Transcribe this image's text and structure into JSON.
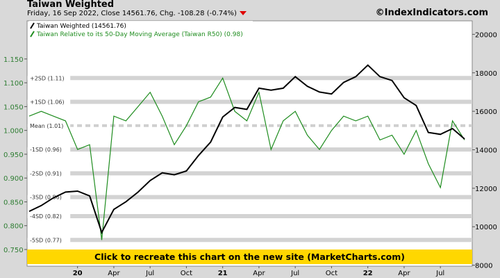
{
  "header": {
    "title": "Taiwan Weighted",
    "subtitle": "Friday, 16 Sep 2022, Close 14561.76, Chg. -108.28 (-0.74%)",
    "brand": "©IndexIndicators.com",
    "down_color": "#e00000"
  },
  "banner": {
    "text": "Click to recreate this chart on the new site (MarketCharts.com)",
    "color": "#ffd700"
  },
  "chart_data": {
    "type": "line",
    "legend": [
      "Taiwan Weighted (14561.76)",
      "Taiwan Relative to its 50-Day Moving Average (Taiwan R50) (0.98)"
    ],
    "legend_placement": "top-left",
    "left_axis": {
      "ticks": [
        "1.150",
        "1.100",
        "1.050",
        "1.000",
        "0.950",
        "0.900",
        "0.850",
        "0.800",
        "0.750"
      ],
      "range": [
        0.715,
        1.23
      ]
    },
    "right_axis": {
      "ticks": [
        "20000",
        "18000",
        "16000",
        "14000",
        "12000",
        "10000",
        "8000"
      ],
      "range": [
        7950,
        20700
      ]
    },
    "x_labels": [
      "20",
      "Apr",
      "Jul",
      "Oct",
      "21",
      "Apr",
      "Jul",
      "Oct",
      "22",
      "Apr",
      "Jul"
    ],
    "x_labels_bold": [
      "20",
      "21",
      "22"
    ],
    "bands": [
      {
        "label": "+2SD (1.11)",
        "value": 1.11
      },
      {
        "label": "+1SD (1.06)",
        "value": 1.06
      },
      {
        "label": "Mean (1.01)",
        "value": 1.01,
        "dashed": true
      },
      {
        "label": "-1SD (0.96)",
        "value": 0.96
      },
      {
        "label": "-2SD (0.91)",
        "value": 0.91
      },
      {
        "label": "-3SD (0.86)",
        "value": 0.86
      },
      {
        "label": "-4SD (0.82)",
        "value": 0.82
      },
      {
        "label": "-5SD (0.77)",
        "value": 0.77
      }
    ],
    "series": [
      {
        "name": "Taiwan Weighted (14561.76)",
        "axis": "right",
        "color": "#000000",
        "x": [
          "2019-09",
          "2019-10",
          "2019-11",
          "2019-12",
          "2020-01",
          "2020-02",
          "2020-03",
          "2020-04",
          "2020-05",
          "2020-06",
          "2020-07",
          "2020-08",
          "2020-09",
          "2020-10",
          "2020-11",
          "2020-12",
          "2021-01",
          "2021-02",
          "2021-03",
          "2021-04",
          "2021-05",
          "2021-06",
          "2021-07",
          "2021-08",
          "2021-09",
          "2021-10",
          "2021-11",
          "2021-12",
          "2022-01",
          "2022-02",
          "2022-03",
          "2022-04",
          "2022-05",
          "2022-06",
          "2022-07",
          "2022-08",
          "2022-09"
        ],
        "values": [
          10800,
          11100,
          11500,
          11800,
          11850,
          11600,
          9700,
          10900,
          11300,
          11800,
          12400,
          12800,
          12700,
          12900,
          13700,
          14400,
          15700,
          16200,
          16100,
          17200,
          17100,
          17200,
          17800,
          17300,
          17000,
          16900,
          17500,
          17800,
          18400,
          17800,
          17600,
          16700,
          16300,
          14900,
          14800,
          15100,
          14560
        ]
      },
      {
        "name": "Taiwan Relative to its 50-Day Moving Average (Taiwan R50) (0.98)",
        "axis": "left",
        "color": "#1e8c1e",
        "x": [
          "2019-09",
          "2019-10",
          "2019-11",
          "2019-12",
          "2020-01",
          "2020-02",
          "2020-03",
          "2020-04",
          "2020-05",
          "2020-06",
          "2020-07",
          "2020-08",
          "2020-09",
          "2020-10",
          "2020-11",
          "2020-12",
          "2021-01",
          "2021-02",
          "2021-03",
          "2021-04",
          "2021-05",
          "2021-06",
          "2021-07",
          "2021-08",
          "2021-09",
          "2021-10",
          "2021-11",
          "2021-12",
          "2022-01",
          "2022-02",
          "2022-03",
          "2022-04",
          "2022-05",
          "2022-06",
          "2022-07",
          "2022-08",
          "2022-09"
        ],
        "values": [
          1.03,
          1.04,
          1.03,
          1.02,
          0.96,
          0.97,
          0.77,
          1.03,
          1.02,
          1.05,
          1.08,
          1.03,
          0.97,
          1.01,
          1.06,
          1.07,
          1.11,
          1.04,
          1.02,
          1.08,
          0.96,
          1.02,
          1.04,
          0.99,
          0.96,
          1.0,
          1.03,
          1.02,
          1.03,
          0.98,
          0.99,
          0.95,
          1.0,
          0.93,
          0.88,
          1.02,
          0.98
        ]
      }
    ]
  }
}
